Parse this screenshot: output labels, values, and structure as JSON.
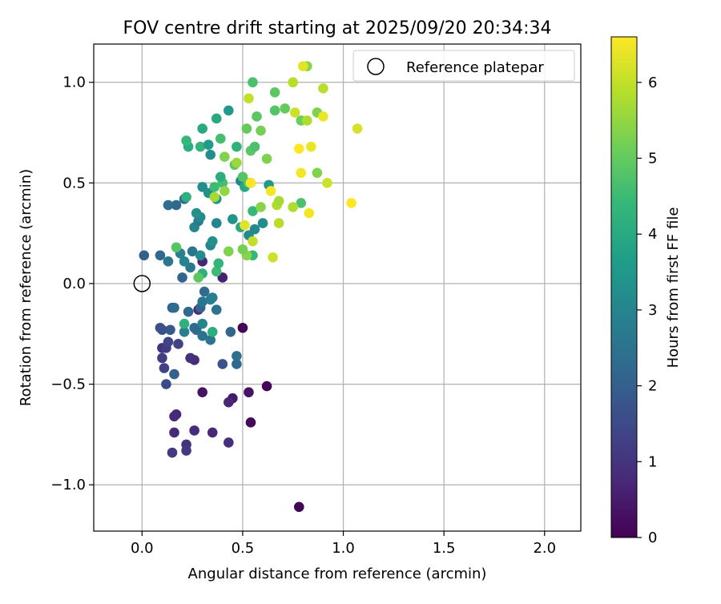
{
  "chart_data": {
    "type": "scatter",
    "title": "FOV centre drift starting at 2025/09/20 20:34:34",
    "xlabel": "Angular distance from reference (arcmin)",
    "ylabel": "Rotation from reference (arcmin)",
    "xlim": [
      -0.24,
      2.18
    ],
    "ylim": [
      -1.23,
      1.19
    ],
    "xticks": [
      0.0,
      0.5,
      1.0,
      1.5,
      2.0
    ],
    "xtick_labels": [
      "0.0",
      "0.5",
      "1.0",
      "1.5",
      "2.0"
    ],
    "yticks": [
      -1.0,
      -0.5,
      0.0,
      0.5,
      1.0
    ],
    "ytick_labels": [
      "−1.0",
      "−0.5",
      "0.0",
      "0.5",
      "1.0"
    ],
    "grid": true,
    "legend": {
      "position": "top-right",
      "entries": [
        "Reference platepar"
      ]
    },
    "reference_point": {
      "x": 0.0,
      "y": 0.0,
      "label": "Reference platepar"
    },
    "colorbar": {
      "label": "Hours from first FF file",
      "range": [
        0,
        6.6
      ],
      "ticks": [
        0,
        1,
        2,
        3,
        4,
        5,
        6
      ],
      "tick_labels": [
        "0",
        "1",
        "2",
        "3",
        "4",
        "5",
        "6"
      ],
      "colormap": [
        "#440154",
        "#482878",
        "#3e4989",
        "#31688e",
        "#26828e",
        "#1f9e89",
        "#35b779",
        "#6ece58",
        "#b5de2b",
        "#fde725"
      ]
    },
    "points": [
      [
        0.78,
        -1.11,
        0.05
      ],
      [
        0.5,
        -0.22,
        0.1
      ],
      [
        0.62,
        -0.51,
        0.1
      ],
      [
        0.54,
        -0.69,
        0.15
      ],
      [
        0.3,
        -0.54,
        0.35
      ],
      [
        0.45,
        -0.57,
        0.45
      ],
      [
        0.53,
        -0.54,
        0.35
      ],
      [
        0.43,
        -0.59,
        0.7
      ],
      [
        0.17,
        -0.65,
        0.7
      ],
      [
        0.16,
        -0.66,
        0.8
      ],
      [
        0.16,
        -0.74,
        0.8
      ],
      [
        0.35,
        -0.74,
        0.75
      ],
      [
        0.26,
        -0.73,
        0.85
      ],
      [
        0.43,
        -0.79,
        0.9
      ],
      [
        0.22,
        -0.8,
        1.0
      ],
      [
        0.22,
        -0.83,
        1.1
      ],
      [
        0.15,
        -0.84,
        1.1
      ],
      [
        0.26,
        -0.38,
        0.85
      ],
      [
        0.24,
        -0.37,
        0.95
      ],
      [
        0.4,
        0.03,
        0.6
      ],
      [
        0.3,
        0.11,
        0.7
      ],
      [
        0.28,
        -0.13,
        0.8
      ],
      [
        0.1,
        -0.32,
        1.0
      ],
      [
        0.12,
        -0.32,
        1.2
      ],
      [
        0.18,
        -0.3,
        1.3
      ],
      [
        0.1,
        -0.37,
        1.2
      ],
      [
        0.11,
        -0.42,
        1.3
      ],
      [
        0.13,
        -0.29,
        1.4
      ],
      [
        0.12,
        -0.5,
        1.5
      ],
      [
        0.09,
        -0.22,
        1.6
      ],
      [
        0.1,
        -0.23,
        1.7
      ],
      [
        0.14,
        -0.23,
        1.8
      ],
      [
        0.16,
        -0.45,
        2.0
      ],
      [
        0.4,
        -0.4,
        1.7
      ],
      [
        0.47,
        -0.4,
        2.2
      ],
      [
        0.47,
        -0.36,
        2.4
      ],
      [
        0.44,
        -0.24,
        2.1
      ],
      [
        0.26,
        -0.22,
        2.3
      ],
      [
        0.27,
        -0.23,
        2.2
      ],
      [
        0.3,
        -0.26,
        2.5
      ],
      [
        0.34,
        -0.28,
        2.6
      ],
      [
        0.21,
        -0.24,
        2.8
      ],
      [
        0.23,
        -0.14,
        2.2
      ],
      [
        0.15,
        -0.12,
        2.0
      ],
      [
        0.16,
        -0.12,
        2.3
      ],
      [
        0.29,
        -0.12,
        2.1
      ],
      [
        0.3,
        -0.09,
        2.6
      ],
      [
        0.34,
        -0.08,
        2.9
      ],
      [
        0.31,
        -0.04,
        2.3
      ],
      [
        0.37,
        -0.13,
        2.5
      ],
      [
        0.35,
        -0.07,
        2.8
      ],
      [
        0.3,
        -0.2,
        3.0
      ],
      [
        0.21,
        -0.2,
        4.2
      ],
      [
        0.35,
        -0.24,
        4.1
      ],
      [
        0.01,
        0.14,
        2.0
      ],
      [
        0.09,
        0.14,
        2.2
      ],
      [
        0.13,
        0.11,
        2.6
      ],
      [
        0.2,
        0.03,
        2.1
      ],
      [
        0.24,
        0.08,
        2.7
      ],
      [
        0.25,
        0.16,
        2.6
      ],
      [
        0.19,
        0.15,
        2.9
      ],
      [
        0.21,
        0.11,
        3.0
      ],
      [
        0.29,
        0.14,
        3.2
      ],
      [
        0.34,
        0.19,
        3.0
      ],
      [
        0.35,
        0.21,
        3.3
      ],
      [
        0.37,
        0.3,
        3.0
      ],
      [
        0.13,
        0.39,
        2.4
      ],
      [
        0.17,
        0.39,
        2.2
      ],
      [
        0.26,
        0.28,
        3.0
      ],
      [
        0.28,
        0.31,
        2.7
      ],
      [
        0.29,
        0.33,
        3.1
      ],
      [
        0.27,
        0.35,
        3.3
      ],
      [
        0.3,
        0.48,
        3.2
      ],
      [
        0.33,
        0.45,
        3.3
      ],
      [
        0.37,
        0.42,
        3.5
      ],
      [
        0.45,
        0.32,
        3.4
      ],
      [
        0.53,
        0.24,
        3.2
      ],
      [
        0.56,
        0.27,
        3.1
      ],
      [
        0.6,
        0.3,
        3.2
      ],
      [
        0.63,
        0.49,
        3.5
      ],
      [
        0.21,
        0.42,
        2.5
      ],
      [
        0.49,
        0.51,
        3.0
      ],
      [
        0.49,
        0.28,
        4.0
      ],
      [
        0.3,
        0.05,
        4.2
      ],
      [
        0.37,
        0.06,
        4.5
      ],
      [
        0.17,
        0.18,
        4.8
      ],
      [
        0.38,
        0.1,
        4.3
      ],
      [
        0.55,
        0.14,
        4.4
      ],
      [
        0.28,
        0.03,
        4.9
      ],
      [
        0.43,
        0.16,
        5.3
      ],
      [
        0.52,
        0.14,
        5.4
      ],
      [
        0.5,
        0.17,
        5.2
      ],
      [
        0.46,
        0.59,
        4.9
      ],
      [
        0.4,
        0.5,
        4.6
      ],
      [
        0.51,
        0.48,
        4.0
      ],
      [
        0.54,
        0.5,
        4.3
      ],
      [
        0.39,
        0.53,
        4.1
      ],
      [
        0.36,
        0.48,
        4.5
      ],
      [
        0.53,
        0.5,
        5.0
      ],
      [
        0.55,
        0.36,
        4.4
      ],
      [
        0.22,
        0.43,
        4.2
      ],
      [
        0.23,
        0.68,
        4.1
      ],
      [
        0.22,
        0.71,
        4.4
      ],
      [
        0.29,
        0.68,
        4.3
      ],
      [
        0.33,
        0.69,
        3.6
      ],
      [
        0.34,
        0.64,
        3.2
      ],
      [
        0.37,
        0.82,
        4.0
      ],
      [
        0.43,
        0.86,
        3.6
      ],
      [
        0.3,
        0.77,
        4.0
      ],
      [
        0.39,
        0.72,
        4.6
      ],
      [
        0.47,
        0.68,
        4.2
      ],
      [
        0.52,
        0.77,
        5.0
      ],
      [
        0.54,
        0.66,
        4.9
      ],
      [
        0.56,
        0.68,
        4.7
      ],
      [
        0.57,
        0.83,
        4.9
      ],
      [
        0.59,
        0.76,
        5.2
      ],
      [
        0.62,
        0.62,
        5.3
      ],
      [
        0.55,
        1.0,
        4.7
      ],
      [
        0.66,
        0.86,
        4.8
      ],
      [
        0.66,
        0.95,
        4.9
      ],
      [
        0.71,
        0.87,
        5.0
      ],
      [
        0.79,
        0.81,
        5.1
      ],
      [
        0.82,
        1.08,
        5.4
      ],
      [
        0.87,
        0.85,
        5.3
      ],
      [
        0.87,
        0.55,
        5.3
      ],
      [
        0.79,
        0.4,
        4.7
      ],
      [
        0.41,
        0.63,
        5.3
      ],
      [
        0.47,
        0.6,
        5.6
      ],
      [
        0.53,
        0.92,
        6.0
      ],
      [
        0.75,
        1.0,
        5.9
      ],
      [
        0.76,
        0.85,
        6.1
      ],
      [
        0.82,
        0.81,
        5.8
      ],
      [
        0.8,
        1.08,
        6.3
      ],
      [
        0.9,
        0.97,
        5.9
      ],
      [
        0.9,
        0.83,
        6.4
      ],
      [
        0.92,
        0.5,
        6.1
      ],
      [
        0.67,
        0.39,
        5.8
      ],
      [
        0.68,
        0.41,
        5.7
      ],
      [
        0.75,
        0.38,
        5.8
      ],
      [
        0.68,
        0.3,
        5.9
      ],
      [
        0.65,
        0.13,
        6.1
      ],
      [
        0.55,
        0.21,
        6.0
      ],
      [
        0.51,
        0.29,
        6.3
      ],
      [
        0.5,
        0.53,
        4.8
      ],
      [
        0.54,
        0.5,
        6.6
      ],
      [
        0.64,
        0.46,
        6.5
      ],
      [
        0.78,
        0.67,
        6.6
      ],
      [
        0.84,
        0.68,
        6.4
      ],
      [
        0.79,
        0.55,
        6.5
      ],
      [
        0.83,
        0.35,
        6.5
      ],
      [
        1.04,
        0.4,
        6.6
      ],
      [
        1.07,
        0.77,
        6.2
      ],
      [
        0.41,
        0.46,
        5.5
      ],
      [
        0.36,
        0.43,
        5.7
      ],
      [
        0.59,
        0.38,
        5.4
      ]
    ]
  }
}
